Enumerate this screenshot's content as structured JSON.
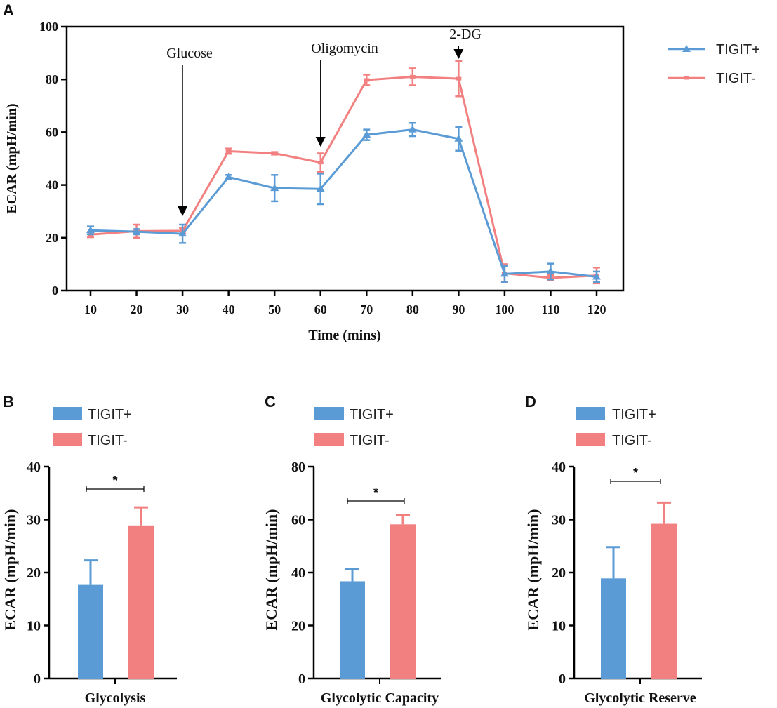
{
  "colors": {
    "tigit_pos": "#5B9BD5",
    "tigit_neg": "#F28080",
    "axis": "#000000"
  },
  "chart_data": [
    {
      "panel": "A",
      "type": "line",
      "title": "",
      "xlabel": "Time (mins)",
      "ylabel": "ECAR (mpH/min)",
      "x": [
        10,
        20,
        30,
        40,
        50,
        60,
        70,
        80,
        90,
        100,
        110,
        120
      ],
      "xticks": [
        "10",
        "20",
        "30",
        "40",
        "50",
        "60",
        "70",
        "80",
        "90",
        "100",
        "110",
        "120"
      ],
      "ylim": [
        0,
        100
      ],
      "yticks": [
        "0",
        "20",
        "40",
        "60",
        "80",
        "100"
      ],
      "series": [
        {
          "name": "TIGIT+",
          "marker": "triangle",
          "values": [
            22.8,
            22.3,
            21.5,
            43,
            38.8,
            38.5,
            59,
            61,
            57.5,
            6.3,
            7.2,
            5.2
          ],
          "errors": [
            1.5,
            1.0,
            3.5,
            0.8,
            5.0,
            5.8,
            2.0,
            2.5,
            4.5,
            3.0,
            3.0,
            2.0
          ]
        },
        {
          "name": "TIGIT-",
          "marker": "dash",
          "values": [
            21.2,
            22.5,
            22.6,
            52.8,
            52.0,
            48.5,
            79.8,
            81.0,
            80.3,
            6.5,
            4.8,
            5.7
          ],
          "errors": [
            1.0,
            2.5,
            1.0,
            1.0,
            0.5,
            3.5,
            2.0,
            3.2,
            6.7,
            3.5,
            1.0,
            3.0
          ]
        }
      ],
      "annotations": [
        {
          "label": "Glucose",
          "x": 30
        },
        {
          "label": "Oligomycin",
          "x": 60
        },
        {
          "label": "2-DG",
          "x": 90
        }
      ]
    },
    {
      "panel": "B",
      "type": "bar",
      "xlabel": "Glycolysis",
      "ylabel": "ECAR (mpH/min)",
      "ylim": [
        0,
        40
      ],
      "yticks": [
        "0",
        "10",
        "20",
        "30",
        "40"
      ],
      "series": [
        {
          "name": "TIGIT+",
          "values": [
            17.8
          ],
          "errors": [
            4.5
          ]
        },
        {
          "name": "TIGIT-",
          "values": [
            28.9
          ],
          "errors": [
            3.4
          ]
        }
      ],
      "significance": "*"
    },
    {
      "panel": "C",
      "type": "bar",
      "xlabel": "Glycolytic Capacity",
      "ylabel": "ECAR (mpH/min)",
      "ylim": [
        0,
        80
      ],
      "yticks": [
        "0",
        "20",
        "40",
        "60",
        "80"
      ],
      "series": [
        {
          "name": "TIGIT+",
          "values": [
            36.7
          ],
          "errors": [
            4.5
          ]
        },
        {
          "name": "TIGIT-",
          "values": [
            58.2
          ],
          "errors": [
            3.6
          ]
        }
      ],
      "significance": "*"
    },
    {
      "panel": "D",
      "type": "bar",
      "xlabel": "Glycolytic Reserve",
      "ylabel": "ECAR (mpH/min)",
      "ylim": [
        0,
        40
      ],
      "yticks": [
        "0",
        "10",
        "20",
        "30",
        "40"
      ],
      "series": [
        {
          "name": "TIGIT+",
          "values": [
            18.9
          ],
          "errors": [
            5.9
          ]
        },
        {
          "name": "TIGIT-",
          "values": [
            29.2
          ],
          "errors": [
            4.0
          ]
        }
      ],
      "significance": "*"
    }
  ]
}
